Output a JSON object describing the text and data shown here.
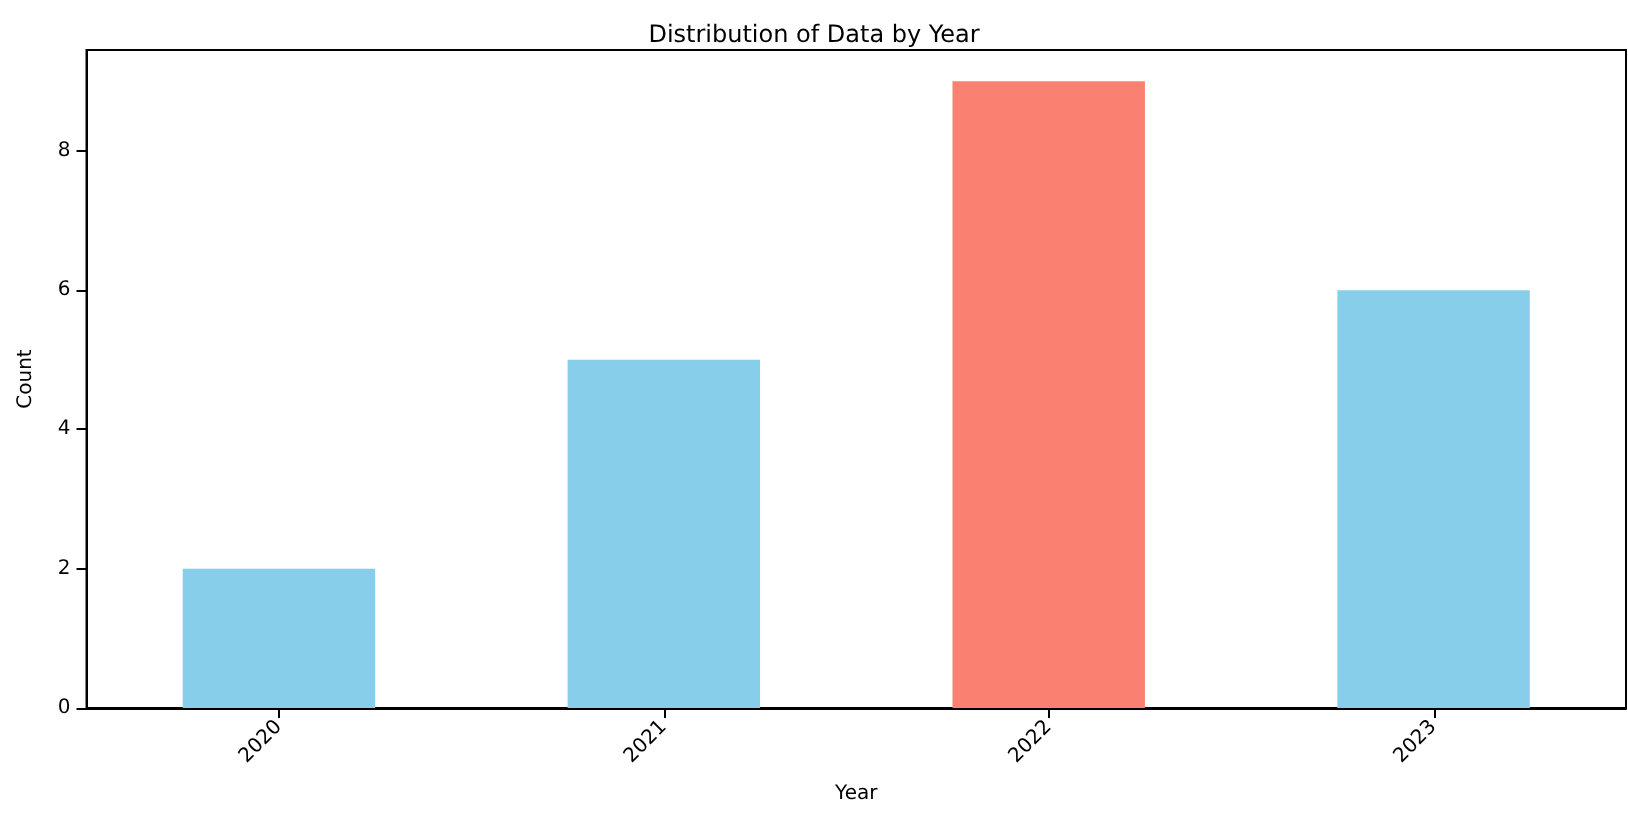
{
  "chart_data": {
    "type": "bar",
    "title": "Distribution of Data by Year",
    "xlabel": "Year",
    "ylabel": "Count",
    "categories": [
      "2020",
      "2021",
      "2022",
      "2023"
    ],
    "values": [
      2,
      5,
      9,
      6
    ],
    "colors": [
      "#87ceeb",
      "#87ceeb",
      "#fa8072",
      "#87ceeb"
    ],
    "ylim": [
      0,
      9.45
    ],
    "yticks": [
      0,
      2,
      4,
      6,
      8
    ],
    "grid": false
  }
}
